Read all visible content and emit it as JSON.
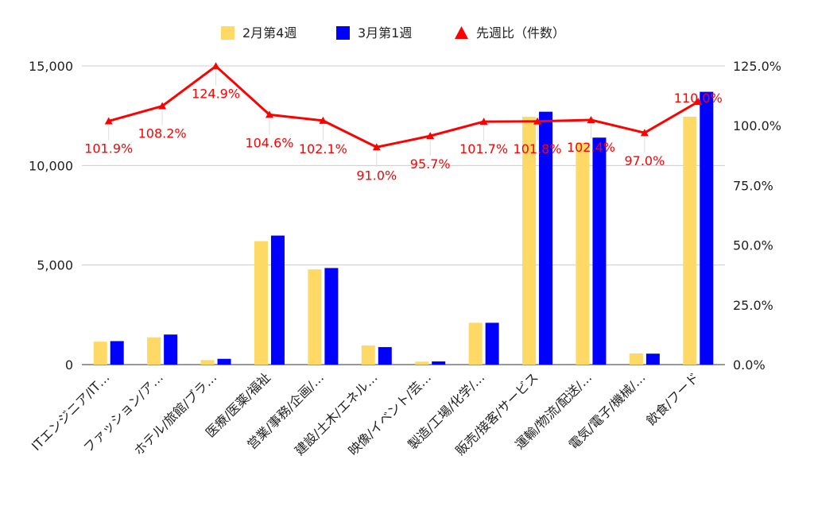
{
  "colors": {
    "series1": "#FFD966",
    "series2": "#0000FF",
    "ratio": "#FF0000",
    "grid": "#CCCCCC",
    "text": "#222222"
  },
  "legend": {
    "items": [
      {
        "label": "2月第4週",
        "shape": "square",
        "color": "#FFD966"
      },
      {
        "label": "3月第1週",
        "shape": "square",
        "color": "#0000FF"
      },
      {
        "label": "先週比（件数）",
        "shape": "triangle",
        "color": "#FF0000"
      }
    ]
  },
  "chart_data": {
    "type": "bar",
    "title": "",
    "xlabel": "",
    "ylabel": "",
    "legend_position": "top",
    "grid": true,
    "categories": [
      "ITエンジニア/IT…",
      "ファッション/ア…",
      "ホテル/旅館/ブラ…",
      "医療/医薬/福祉",
      "営業/事務/企画/…",
      "建設/土木/エネル…",
      "映像/イベント/芸…",
      "製造/工場/化学/…",
      "販売/接客/サービス",
      "運輸/物流/配送/…",
      "電気/電子/機械/…",
      "飲食/フード"
    ],
    "ylim": [
      0,
      15000
    ],
    "y_ticks": [
      "0",
      "5,000",
      "10,000",
      "15,000"
    ],
    "y_tick_values": [
      0,
      5000,
      10000,
      15000
    ],
    "y2lim": [
      0,
      125
    ],
    "y2_ticks": [
      "0.0%",
      "25.0%",
      "50.0%",
      "75.0%",
      "100.0%",
      "125.0%"
    ],
    "y2_tick_values": [
      0,
      25,
      50,
      75,
      100,
      125
    ],
    "series": [
      {
        "name": "2月第4週",
        "type": "bar",
        "axis": "left",
        "values": [
          1150,
          1370,
          230,
          6200,
          4780,
          960,
          150,
          2100,
          12450,
          11150,
          560,
          12450
        ]
      },
      {
        "name": "3月第1週",
        "type": "bar",
        "axis": "left",
        "values": [
          1180,
          1510,
          290,
          6480,
          4850,
          880,
          160,
          2100,
          12700,
          11400,
          550,
          13700
        ]
      },
      {
        "name": "先週比（件数）",
        "type": "line",
        "axis": "right",
        "values": [
          101.9,
          108.2,
          124.9,
          104.6,
          102.1,
          91.0,
          95.7,
          101.7,
          101.8,
          102.4,
          97.0,
          110.0
        ]
      }
    ],
    "data_labels": [
      "101.9%",
      "108.2%",
      "124.9%",
      "104.6%",
      "102.1%",
      "91.0%",
      "95.7%",
      "101.7%",
      "101.8%",
      "102.4%",
      "97.0%",
      "110.0%"
    ]
  }
}
